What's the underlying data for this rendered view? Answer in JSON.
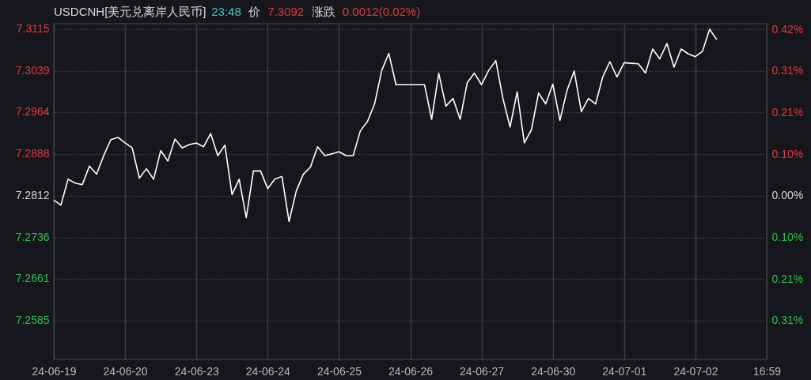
{
  "chart_data": {
    "type": "line",
    "title": "USDCNH[美元兑离岸人民币]",
    "annotations": [
      "23:48",
      "价",
      "7.3092",
      "涨跌",
      "0.0012(0.02%)"
    ],
    "categories": [
      "24-06-19",
      null,
      null,
      null,
      null,
      null,
      null,
      null,
      null,
      null,
      "24-06-20",
      null,
      null,
      null,
      null,
      null,
      null,
      null,
      null,
      null,
      "24-06-23",
      null,
      null,
      null,
      null,
      null,
      null,
      null,
      null,
      null,
      "24-06-24",
      null,
      null,
      null,
      null,
      null,
      null,
      null,
      null,
      null,
      "24-06-25",
      null,
      null,
      null,
      null,
      null,
      null,
      null,
      null,
      null,
      "24-06-26",
      null,
      null,
      null,
      null,
      null,
      null,
      null,
      null,
      null,
      "24-06-27",
      null,
      null,
      null,
      null,
      null,
      null,
      null,
      null,
      null,
      "24-06-30",
      null,
      null,
      null,
      null,
      null,
      null,
      null,
      null,
      null,
      "24-07-01",
      null,
      null,
      null,
      null,
      null,
      null,
      null,
      null,
      null,
      "24-07-02",
      null,
      null,
      null,
      null,
      null,
      null,
      null,
      null,
      null,
      "16:59"
    ],
    "ylim": [
      7.2514,
      7.3125
    ],
    "yticks": [
      7.3115,
      7.3039,
      7.2964,
      7.2888,
      7.2812,
      7.2736,
      7.2661,
      7.2585
    ],
    "y2lim": [
      -0.409,
      0.43
    ],
    "y2ticks": [
      {
        "value": 0.416,
        "label": "0.42%"
      },
      {
        "value": 0.312,
        "label": "0.31%"
      },
      {
        "value": 0.208,
        "label": "0.21%"
      },
      {
        "value": 0.104,
        "label": "0.10%"
      },
      {
        "value": 0,
        "label": "0.00%"
      },
      {
        "value": -0.104,
        "label": "0.10%"
      },
      {
        "value": -0.208,
        "label": "0.21%"
      },
      {
        "value": -0.312,
        "label": "0.31%"
      }
    ],
    "grid": true,
    "line_style": "solid",
    "marker": "none",
    "series": [
      {
        "color": "#ffffff",
        "values": [
          7.2804,
          7.2795,
          7.2842,
          7.2835,
          7.2832,
          7.2866,
          7.2851,
          7.2885,
          7.2914,
          7.2918,
          7.2908,
          7.2899,
          7.2844,
          7.2861,
          7.2842,
          7.2894,
          7.2875,
          7.2915,
          7.2899,
          7.2905,
          7.2908,
          7.2901,
          7.2925,
          7.2885,
          7.2904,
          7.2814,
          7.2842,
          7.2772,
          7.2857,
          7.2857,
          7.2825,
          7.2842,
          7.2847,
          7.2765,
          7.282,
          7.2851,
          7.2864,
          7.2901,
          7.2885,
          7.2888,
          7.2892,
          7.2885,
          7.2885,
          7.293,
          7.2947,
          7.2979,
          7.304,
          7.3071,
          7.3014,
          7.3014,
          7.3014,
          7.3014,
          7.3014,
          7.2951,
          7.3035,
          7.2975,
          7.2989,
          7.2951,
          7.3018,
          7.3035,
          7.3014,
          7.304,
          7.3058,
          7.2989,
          7.2937,
          7.3001,
          7.2908,
          7.2932,
          7.2999,
          7.2979,
          7.3015,
          7.2949,
          7.3004,
          7.3039,
          7.2965,
          7.2989,
          7.2979,
          7.3028,
          7.3056,
          7.3028,
          7.3054,
          7.3053,
          7.3052,
          7.3035,
          7.3079,
          7.3061,
          7.3089,
          7.3046,
          7.3079,
          7.307,
          7.3065,
          7.3075,
          7.3115,
          7.3096,
          null,
          null,
          null,
          null,
          null,
          null,
          null
        ]
      }
    ]
  }
}
